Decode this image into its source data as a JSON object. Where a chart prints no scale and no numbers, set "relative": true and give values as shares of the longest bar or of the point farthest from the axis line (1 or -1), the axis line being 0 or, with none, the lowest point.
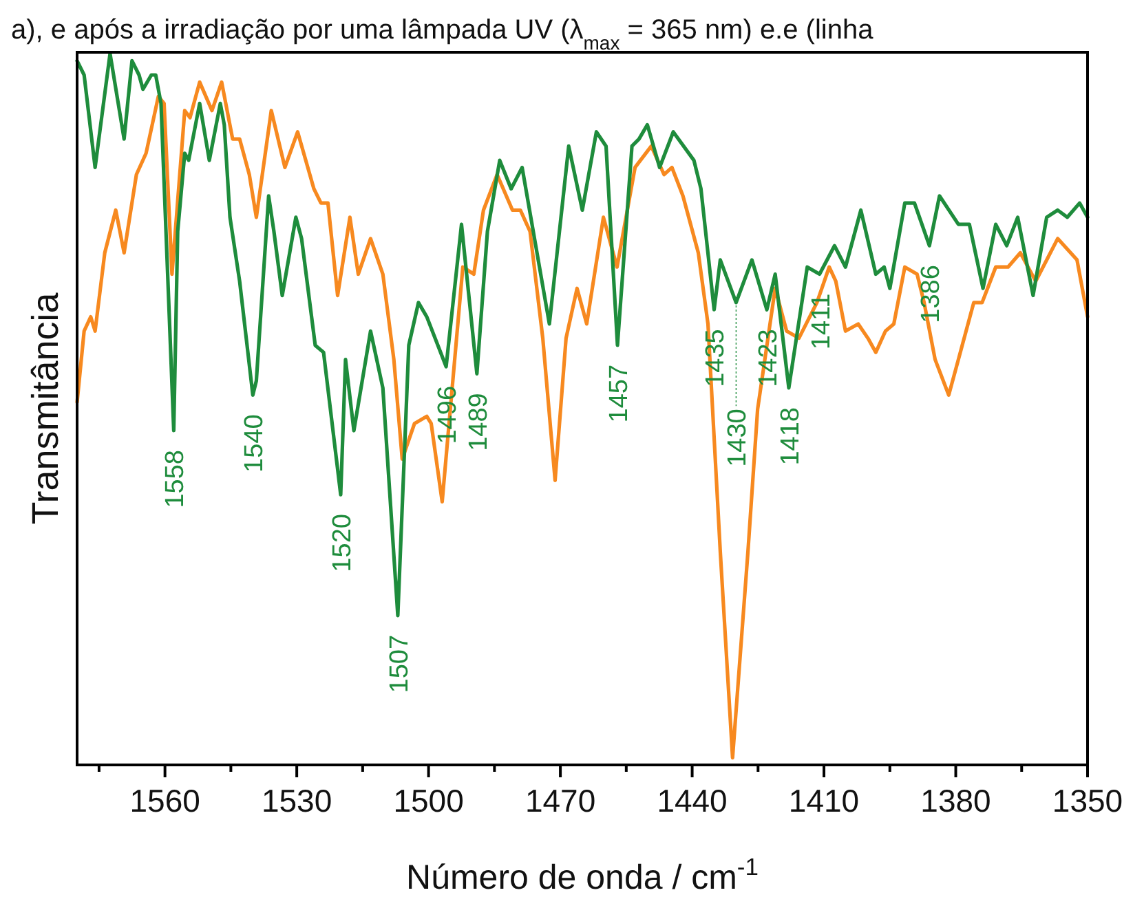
{
  "chart_data": {
    "type": "line",
    "title": "a), e após a irradiação por uma lâmpada UV (λ$_{max}$ = 365 nm) e.e (linha",
    "xlabel": "Número de onda / cm$^{-1}$",
    "ylabel": "Transmitância",
    "relative": true,
    "grid": false,
    "line_style": "solid",
    "xlim": [
      1580,
      1350
    ],
    "xticks": [
      1560,
      1530,
      1500,
      1470,
      1440,
      1410,
      1380,
      1350,
      {
        "value": 1575,
        "label": null
      },
      {
        "value": 1545,
        "label": null
      },
      {
        "value": 1515,
        "label": null
      },
      {
        "value": 1485,
        "label": null
      },
      {
        "value": 1455,
        "label": null
      },
      {
        "value": 1425,
        "label": null
      },
      {
        "value": 1395,
        "label": null
      },
      {
        "value": 1365,
        "label": null
      }
    ],
    "series": [
      {
        "color": "#f7891f",
        "x": [
          1580,
          1578.4,
          1576.9,
          1575.9,
          1573.7,
          1571.2,
          1569.3,
          1566.5,
          1564.3,
          1561.5,
          1560.2,
          1558.4,
          1555.5,
          1554.3,
          1552.1,
          1549.3,
          1547.1,
          1544.6,
          1543,
          1540.8,
          1539.2,
          1535.8,
          1532.7,
          1529.8,
          1526.1,
          1524.5,
          1522.9,
          1520.7,
          1517.9,
          1516,
          1513.2,
          1510.4,
          1507.9,
          1506,
          1503.2,
          1500.4,
          1499.4,
          1496.9,
          1492.2,
          1489.7,
          1487.5,
          1484.4,
          1480.9,
          1479.1,
          1476.9,
          1474,
          1471.2,
          1468.7,
          1466.2,
          1464,
          1460.2,
          1457.1,
          1453,
          1449.3,
          1446.4,
          1444.6,
          1442.1,
          1438.6,
          1436.4,
          1433.6,
          1430.8,
          1427.3,
          1425.1,
          1421.1,
          1418.5,
          1415.7,
          1411.6,
          1408.8,
          1407.3,
          1405.1,
          1402.2,
          1400,
          1398.2,
          1396,
          1394.1,
          1391.6,
          1388.8,
          1387.2,
          1384.7,
          1381.6,
          1379.4,
          1375.9,
          1374,
          1370.9,
          1368.1,
          1365.3,
          1361.8,
          1356.8,
          1352.4,
          1350
        ],
        "values": [
          0.51,
          0.61,
          0.63,
          0.61,
          0.72,
          0.78,
          0.72,
          0.83,
          0.86,
          0.94,
          0.93,
          0.69,
          0.92,
          0.91,
          0.96,
          0.92,
          0.96,
          0.88,
          0.88,
          0.83,
          0.77,
          0.92,
          0.84,
          0.89,
          0.81,
          0.79,
          0.79,
          0.66,
          0.77,
          0.69,
          0.74,
          0.69,
          0.57,
          0.43,
          0.48,
          0.49,
          0.48,
          0.37,
          0.7,
          0.69,
          0.78,
          0.83,
          0.78,
          0.78,
          0.75,
          0.6,
          0.4,
          0.6,
          0.67,
          0.62,
          0.77,
          0.7,
          0.84,
          0.87,
          0.83,
          0.84,
          0.8,
          0.72,
          0.62,
          0.3,
          0.01,
          0.3,
          0.5,
          0.67,
          0.61,
          0.6,
          0.65,
          0.7,
          0.68,
          0.61,
          0.62,
          0.6,
          0.58,
          0.61,
          0.62,
          0.7,
          0.69,
          0.65,
          0.57,
          0.52,
          0.57,
          0.65,
          0.65,
          0.7,
          0.7,
          0.72,
          0.68,
          0.74,
          0.71,
          0.63
        ]
      },
      {
        "color": "#1e8c3c",
        "x": [
          1580,
          1578.4,
          1575.9,
          1572.5,
          1569.3,
          1567.5,
          1565.9,
          1565,
          1563.1,
          1562.1,
          1560.9,
          1558,
          1557.1,
          1555.5,
          1554.6,
          1552.1,
          1549.9,
          1547.4,
          1546.5,
          1545.2,
          1543,
          1540,
          1539.2,
          1536.4,
          1535.2,
          1533.3,
          1530.2,
          1528.9,
          1525.8,
          1523.9,
          1520,
          1518.9,
          1517,
          1513.2,
          1510.4,
          1507,
          1504.5,
          1502.3,
          1500.4,
          1496,
          1492.5,
          1489,
          1486.6,
          1483.8,
          1481.2,
          1478.7,
          1472.5,
          1468.1,
          1465,
          1461.8,
          1459.6,
          1457,
          1453.7,
          1452.1,
          1450.2,
          1447.4,
          1444.3,
          1439.6,
          1438,
          1435,
          1433.6,
          1430,
          1426.4,
          1423,
          1421.1,
          1418,
          1413.8,
          1411,
          1407.6,
          1405.1,
          1401.6,
          1398.2,
          1396.3,
          1395,
          1391.6,
          1389.4,
          1386,
          1383.7,
          1379.4,
          1376.9,
          1373.8,
          1370.9,
          1368.4,
          1365.9,
          1362.4,
          1359.3,
          1356.8,
          1354.6,
          1351.8,
          1350
        ],
        "values": [
          0.99,
          0.97,
          0.84,
          1,
          0.88,
          0.99,
          0.97,
          0.95,
          0.97,
          0.97,
          0.93,
          0.47,
          0.75,
          0.86,
          0.85,
          0.93,
          0.85,
          0.93,
          0.9,
          0.77,
          0.68,
          0.52,
          0.54,
          0.8,
          0.75,
          0.66,
          0.77,
          0.74,
          0.59,
          0.58,
          0.38,
          0.57,
          0.47,
          0.61,
          0.53,
          0.21,
          0.59,
          0.65,
          0.63,
          0.56,
          0.76,
          0.55,
          0.75,
          0.85,
          0.81,
          0.84,
          0.62,
          0.87,
          0.78,
          0.89,
          0.87,
          0.59,
          0.87,
          0.88,
          0.9,
          0.84,
          0.89,
          0.85,
          0.81,
          0.64,
          0.71,
          0.65,
          0.71,
          0.64,
          0.69,
          0.53,
          0.7,
          0.69,
          0.73,
          0.7,
          0.78,
          0.69,
          0.7,
          0.67,
          0.79,
          0.79,
          0.73,
          0.8,
          0.76,
          0.76,
          0.67,
          0.76,
          0.73,
          0.77,
          0.66,
          0.77,
          0.78,
          0.77,
          0.79,
          0.77
        ]
      }
    ],
    "annotations": [
      {
        "text": "1558",
        "x": 1558,
        "y": 0.47
      },
      {
        "text": "1540",
        "x": 1540,
        "y": 0.52
      },
      {
        "text": "1520",
        "x": 1520,
        "y": 0.38
      },
      {
        "text": "1507",
        "x": 1507,
        "y": 0.21
      },
      {
        "text": "1496",
        "x": 1496,
        "y": 0.56
      },
      {
        "text": "1489",
        "x": 1489,
        "y": 0.55
      },
      {
        "text": "1457",
        "x": 1457,
        "y": 0.59
      },
      {
        "text": "1435",
        "x": 1435,
        "y": 0.64
      },
      {
        "text": "1430",
        "x": 1430,
        "y": 0.65
      },
      {
        "text": "1423",
        "x": 1423,
        "y": 0.64
      },
      {
        "text": "1418",
        "x": 1418,
        "y": 0.53
      },
      {
        "text": "1411",
        "x": 1411,
        "y": 0.69
      },
      {
        "text": "1386",
        "x": 1386,
        "y": 0.73
      }
    ]
  }
}
